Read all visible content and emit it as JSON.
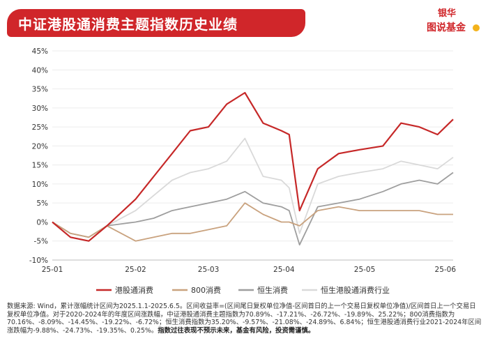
{
  "header": {
    "title": "中证港股通消费主题指数历史业绩",
    "brand_top": "银华",
    "brand_main": "图说基金"
  },
  "chart_data": {
    "type": "line",
    "ylim": [
      -10,
      45
    ],
    "yticks": [
      -10,
      -5,
      0,
      5,
      10,
      15,
      20,
      25,
      30,
      35,
      40,
      45
    ],
    "ytick_labels": [
      "-10%",
      "-5%",
      "0%",
      "5%",
      "10%",
      "15%",
      "20%",
      "25%",
      "30%",
      "35%",
      "40%",
      "45%"
    ],
    "x_dates": [
      "2025-01-02",
      "2025-01-09",
      "2025-01-16",
      "2025-01-23",
      "2025-02-03",
      "2025-02-10",
      "2025-02-17",
      "2025-02-24",
      "2025-03-03",
      "2025-03-10",
      "2025-03-17",
      "2025-03-24",
      "2025-03-31",
      "2025-04-03",
      "2025-04-07",
      "2025-04-14",
      "2025-04-22",
      "2025-04-30",
      "2025-05-09",
      "2025-05-16",
      "2025-05-23",
      "2025-05-30",
      "2025-06-05"
    ],
    "x_ticks": [
      "2025-01-02",
      "2025-02-03",
      "2025-03-03",
      "2025-04-01",
      "2025-05-02",
      "2025-06-02"
    ],
    "x_tick_labels": [
      "25-01",
      "25-02",
      "25-03",
      "25-04",
      "25-05",
      "25-06"
    ],
    "series": [
      {
        "name": "港股通消费",
        "color": "#c62828",
        "values": [
          0,
          -4,
          -5,
          -1,
          6,
          12,
          18,
          24,
          25,
          31,
          34,
          26,
          24,
          23,
          3,
          14,
          18,
          19,
          20,
          26,
          25,
          23,
          27
        ]
      },
      {
        "name": "800消费",
        "color": "#c9a27e",
        "values": [
          0,
          -3,
          -4,
          -1,
          -5,
          -4,
          -3,
          -3,
          -2,
          -1,
          5,
          2,
          0,
          0,
          -1,
          3,
          4,
          3,
          3,
          3,
          3,
          2,
          2
        ]
      },
      {
        "name": "恒生消费",
        "color": "#9e9e9e",
        "values": [
          0,
          -3,
          -4,
          -1,
          0,
          1,
          3,
          4,
          5,
          6,
          8,
          5,
          4,
          3,
          -6,
          4,
          5,
          6,
          8,
          10,
          11,
          10,
          13
        ]
      },
      {
        "name": "恒生港股通消费行业",
        "color": "#d9d9d9",
        "values": [
          0,
          -3,
          -4,
          -1,
          3,
          7,
          11,
          13,
          14,
          16,
          22,
          12,
          11,
          9,
          -3,
          10,
          12,
          13,
          14,
          16,
          15,
          14,
          17
        ]
      }
    ]
  },
  "legend": {
    "items": [
      "港股通消费",
      "800消费",
      "恒生消费",
      "恒生港股通消费行业"
    ]
  },
  "footnote": {
    "text": "数据来源: Wind，累计涨幅统计区间为2025.1.1-2025.6.5。区间收益率=(区间尾日复权单位净值-区间首日的上一个交易日复权单位净值)/区间首日上一个交易日复权单位净值。对于2020-2024年的年度区间涨跌幅，中证港股通消费主题指数为70.89%、-17.21%、-26.72%、-19.89%、25.22%；800消费指数为70.16%、-8.09%、-14.45%、-19.22%、-6.72%；恒生消费指数为35.20%、-9.57%、-21.08%、-24.89%、6.84%；恒生港股通消费行业2021-2024年区间涨跌幅为-9.88%、-24.73%、-19.35%、0.25%。",
    "bold": "指数过往表现不预示未来，基金有风险，投资需谨慎。"
  }
}
